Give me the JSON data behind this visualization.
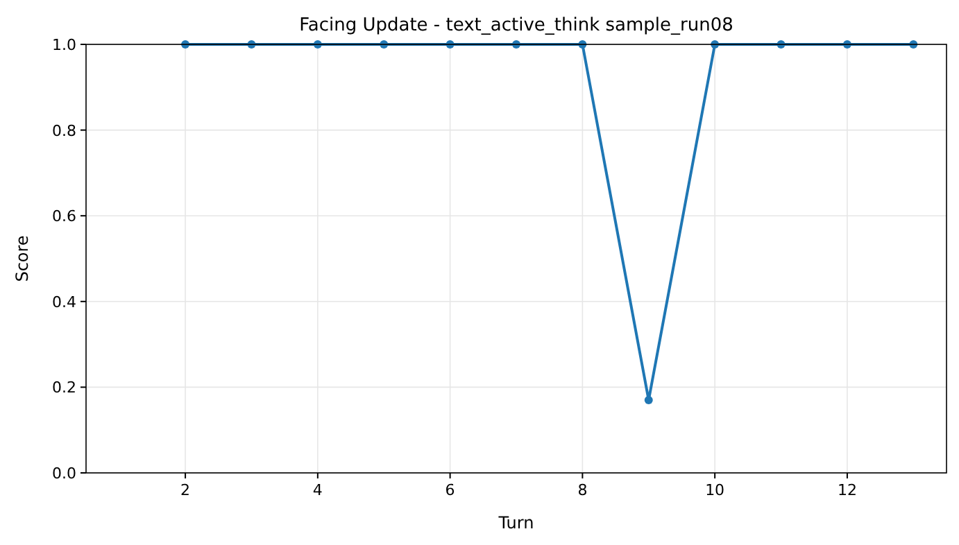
{
  "chart_data": {
    "type": "line",
    "title": "Facing Update - text_active_think sample_run08",
    "xlabel": "Turn",
    "ylabel": "Score",
    "x": [
      2,
      3,
      4,
      5,
      6,
      7,
      8,
      9,
      10,
      11,
      12,
      13
    ],
    "series": [
      {
        "color": "#1f77b4",
        "values": [
          1,
          1,
          1,
          1,
          1,
          1,
          1,
          0.17,
          1,
          1,
          1,
          1
        ]
      }
    ],
    "xlim": [
      0.5,
      13.5
    ],
    "xticks": [
      2,
      4,
      6,
      8,
      10,
      12
    ],
    "ylim": [
      0,
      1
    ],
    "yticks": [
      {
        "value": 0,
        "label": "0.0"
      },
      {
        "value": 0.2,
        "label": "0.2"
      },
      {
        "value": 0.4,
        "label": "0.4"
      },
      {
        "value": 0.6,
        "label": "0.6"
      },
      {
        "value": 0.8,
        "label": "0.8"
      },
      {
        "value": 1,
        "label": "1.0"
      }
    ],
    "grid": true,
    "marker": "circle",
    "line_style": "solid"
  }
}
